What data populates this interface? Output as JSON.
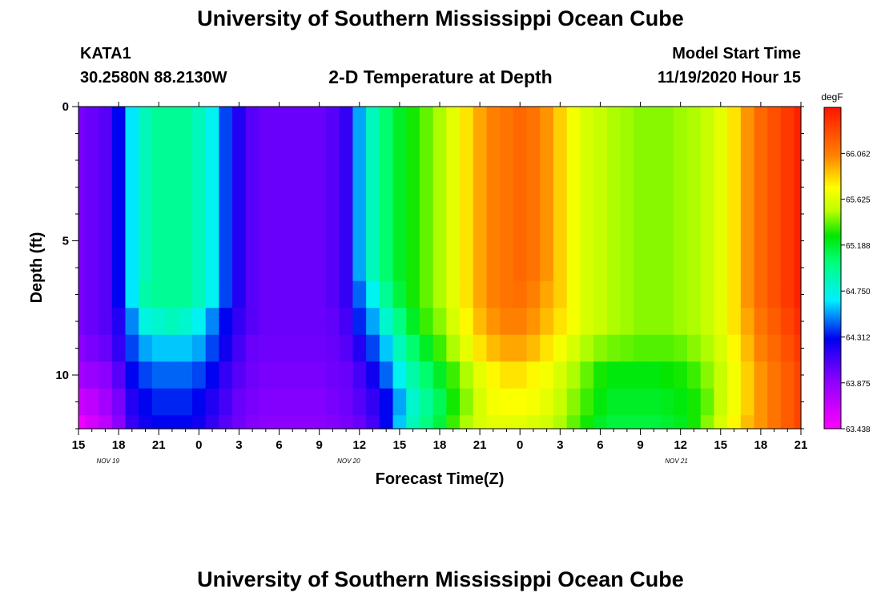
{
  "header": {
    "title": "University of Southern Mississippi Ocean Cube",
    "station_id": "KATA1",
    "coordinates": "30.2580N 88.2130W",
    "plot_title": "2-D Temperature at Depth",
    "model_start_label": "Model Start Time",
    "model_start_value": "11/19/2020 Hour 15"
  },
  "footer": {
    "title": "University of Southern Mississippi Ocean Cube"
  },
  "chart_data": {
    "type": "heatmap",
    "title": "2-D Temperature at Depth",
    "xlabel": "Forecast Time(Z)",
    "ylabel": "Depth (ft)",
    "x_start": "11/19/2020 Hour 15",
    "x_unit": "hours",
    "x_range_hours": [
      0,
      54
    ],
    "x_tick_labels": [
      "15",
      "18",
      "21",
      "0",
      "3",
      "6",
      "9",
      "12",
      "15",
      "18",
      "21",
      "0",
      "3",
      "6",
      "9",
      "12",
      "15",
      "18",
      "21"
    ],
    "date_labels": [
      {
        "label": "NOV 19",
        "hour": 1
      },
      {
        "label": "NOV 20",
        "hour": 19
      },
      {
        "label": "NOV 21",
        "hour": 43.5
      }
    ],
    "y_range_ft": [
      0,
      12
    ],
    "y_inverted": true,
    "y_tick_labels": [
      "0",
      "5",
      "10"
    ],
    "y_major_ticks": [
      0,
      5,
      10
    ],
    "colorbar": {
      "unit": "degF",
      "min": 63.438,
      "max": 66.5,
      "tick_labels": [
        "63.438",
        "63.875",
        "64.312",
        "64.750",
        "65.188",
        "65.625",
        "66.062"
      ],
      "tick_values": [
        63.438,
        63.875,
        64.312,
        64.75,
        65.188,
        65.625,
        66.062
      ]
    },
    "depth_bins_ft": [
      0,
      6.5,
      7.5,
      8.5,
      9.5,
      10.5,
      11.5,
      12
    ],
    "time_hours": [
      0,
      1,
      2,
      3,
      4,
      5,
      6,
      7,
      8,
      9,
      10,
      11,
      12,
      13,
      14,
      15,
      16,
      17,
      18,
      19,
      20,
      21,
      22,
      23,
      24,
      25,
      26,
      27,
      28,
      29,
      30,
      31,
      32,
      33,
      34,
      35,
      36,
      37,
      38,
      39,
      40,
      41,
      42,
      43,
      44,
      45,
      46,
      47,
      48,
      49,
      50,
      51,
      52,
      53,
      54
    ],
    "temperature_profiles_degF": [
      {
        "depth_band": "0-6.5 ft",
        "values": [
          63.95,
          64.0,
          64.05,
          64.3,
          64.65,
          64.85,
          64.95,
          64.95,
          64.95,
          64.85,
          64.7,
          64.4,
          64.2,
          64.05,
          64.0,
          64.0,
          64.0,
          64.0,
          64.0,
          64.05,
          64.15,
          64.55,
          64.85,
          65.05,
          65.2,
          65.3,
          65.4,
          65.5,
          65.65,
          65.8,
          65.95,
          66.05,
          66.1,
          66.15,
          66.1,
          66.0,
          65.85,
          65.7,
          65.6,
          65.55,
          65.5,
          65.48,
          65.45,
          65.45,
          65.45,
          65.48,
          65.5,
          65.55,
          65.65,
          65.8,
          66.0,
          66.15,
          66.25,
          66.35,
          66.45
        ]
      },
      {
        "depth_band": "6.5-7.5 ft",
        "values": [
          63.95,
          64.0,
          64.05,
          64.3,
          64.65,
          64.9,
          64.95,
          64.95,
          64.95,
          64.85,
          64.7,
          64.4,
          64.2,
          64.05,
          64.0,
          64.0,
          64.0,
          64.0,
          64.0,
          64.05,
          64.15,
          64.45,
          64.7,
          64.95,
          65.15,
          65.3,
          65.4,
          65.5,
          65.65,
          65.8,
          65.95,
          66.05,
          66.1,
          66.12,
          66.05,
          65.95,
          65.85,
          65.7,
          65.6,
          65.55,
          65.5,
          65.48,
          65.45,
          65.45,
          65.45,
          65.48,
          65.5,
          65.55,
          65.65,
          65.8,
          66.0,
          66.15,
          66.25,
          66.35,
          66.45
        ]
      },
      {
        "depth_band": "7.5-8.5 ft",
        "values": [
          63.95,
          64.0,
          64.05,
          64.2,
          64.5,
          64.75,
          64.8,
          64.85,
          64.8,
          64.7,
          64.5,
          64.3,
          64.15,
          64.05,
          64.0,
          64.0,
          64.0,
          64.0,
          64.0,
          64.02,
          64.1,
          64.35,
          64.55,
          64.8,
          65.0,
          65.2,
          65.35,
          65.45,
          65.6,
          65.75,
          65.9,
          66.0,
          66.05,
          66.05,
          66.0,
          65.9,
          65.8,
          65.7,
          65.6,
          65.55,
          65.5,
          65.48,
          65.45,
          65.45,
          65.45,
          65.48,
          65.5,
          65.55,
          65.65,
          65.8,
          65.95,
          66.1,
          66.2,
          66.3,
          66.4
        ]
      },
      {
        "depth_band": "8.5-9.5 ft",
        "values": [
          63.9,
          63.95,
          64.0,
          64.15,
          64.4,
          64.55,
          64.6,
          64.6,
          64.6,
          64.55,
          64.4,
          64.25,
          64.1,
          64.0,
          63.98,
          63.98,
          63.98,
          63.98,
          63.98,
          64.0,
          64.05,
          64.2,
          64.4,
          64.6,
          64.85,
          65.05,
          65.2,
          65.35,
          65.5,
          65.65,
          65.8,
          65.9,
          65.95,
          65.95,
          65.9,
          65.8,
          65.7,
          65.6,
          65.5,
          65.45,
          65.42,
          65.4,
          65.38,
          65.38,
          65.38,
          65.4,
          65.45,
          65.5,
          65.6,
          65.75,
          65.9,
          66.05,
          66.15,
          66.25,
          66.35
        ]
      },
      {
        "depth_band": "9.5-10.5 ft",
        "values": [
          63.8,
          63.85,
          63.9,
          64.05,
          64.3,
          64.4,
          64.45,
          64.45,
          64.45,
          64.4,
          64.3,
          64.15,
          64.05,
          63.98,
          63.95,
          63.95,
          63.95,
          63.95,
          63.95,
          63.98,
          64.0,
          64.1,
          64.25,
          64.45,
          64.7,
          64.9,
          65.05,
          65.2,
          65.35,
          65.5,
          65.65,
          65.75,
          65.8,
          65.8,
          65.75,
          65.7,
          65.6,
          65.5,
          65.4,
          65.3,
          65.25,
          65.25,
          65.25,
          65.25,
          65.28,
          65.3,
          65.35,
          65.45,
          65.55,
          65.7,
          65.85,
          66.0,
          66.1,
          66.2,
          66.3
        ]
      },
      {
        "depth_band": "10.5-11.5 ft",
        "values": [
          63.65,
          63.7,
          63.8,
          63.95,
          64.2,
          64.3,
          64.35,
          64.35,
          64.35,
          64.3,
          64.2,
          64.1,
          64.0,
          63.95,
          63.92,
          63.92,
          63.92,
          63.92,
          63.92,
          63.95,
          63.98,
          64.05,
          64.15,
          64.3,
          64.55,
          64.8,
          64.95,
          65.1,
          65.3,
          65.45,
          65.6,
          65.7,
          65.72,
          65.72,
          65.7,
          65.65,
          65.55,
          65.45,
          65.35,
          65.25,
          65.2,
          65.2,
          65.2,
          65.2,
          65.22,
          65.25,
          65.3,
          65.4,
          65.55,
          65.7,
          65.85,
          66.0,
          66.1,
          66.2,
          66.3
        ]
      },
      {
        "depth_band": "11.5-12 ft",
        "values": [
          63.5,
          63.6,
          63.7,
          63.9,
          64.15,
          64.25,
          64.3,
          64.3,
          64.3,
          64.25,
          64.15,
          64.05,
          63.98,
          63.92,
          63.9,
          63.9,
          63.9,
          63.9,
          63.9,
          63.92,
          63.95,
          64.0,
          64.1,
          64.3,
          64.6,
          64.85,
          65.0,
          65.15,
          65.35,
          65.5,
          65.6,
          65.65,
          65.65,
          65.65,
          65.62,
          65.58,
          65.5,
          65.4,
          65.3,
          65.2,
          65.15,
          65.15,
          65.15,
          65.15,
          65.18,
          65.22,
          65.3,
          65.45,
          65.6,
          65.75,
          65.9,
          66.0,
          66.1,
          66.2,
          66.3
        ]
      }
    ]
  }
}
